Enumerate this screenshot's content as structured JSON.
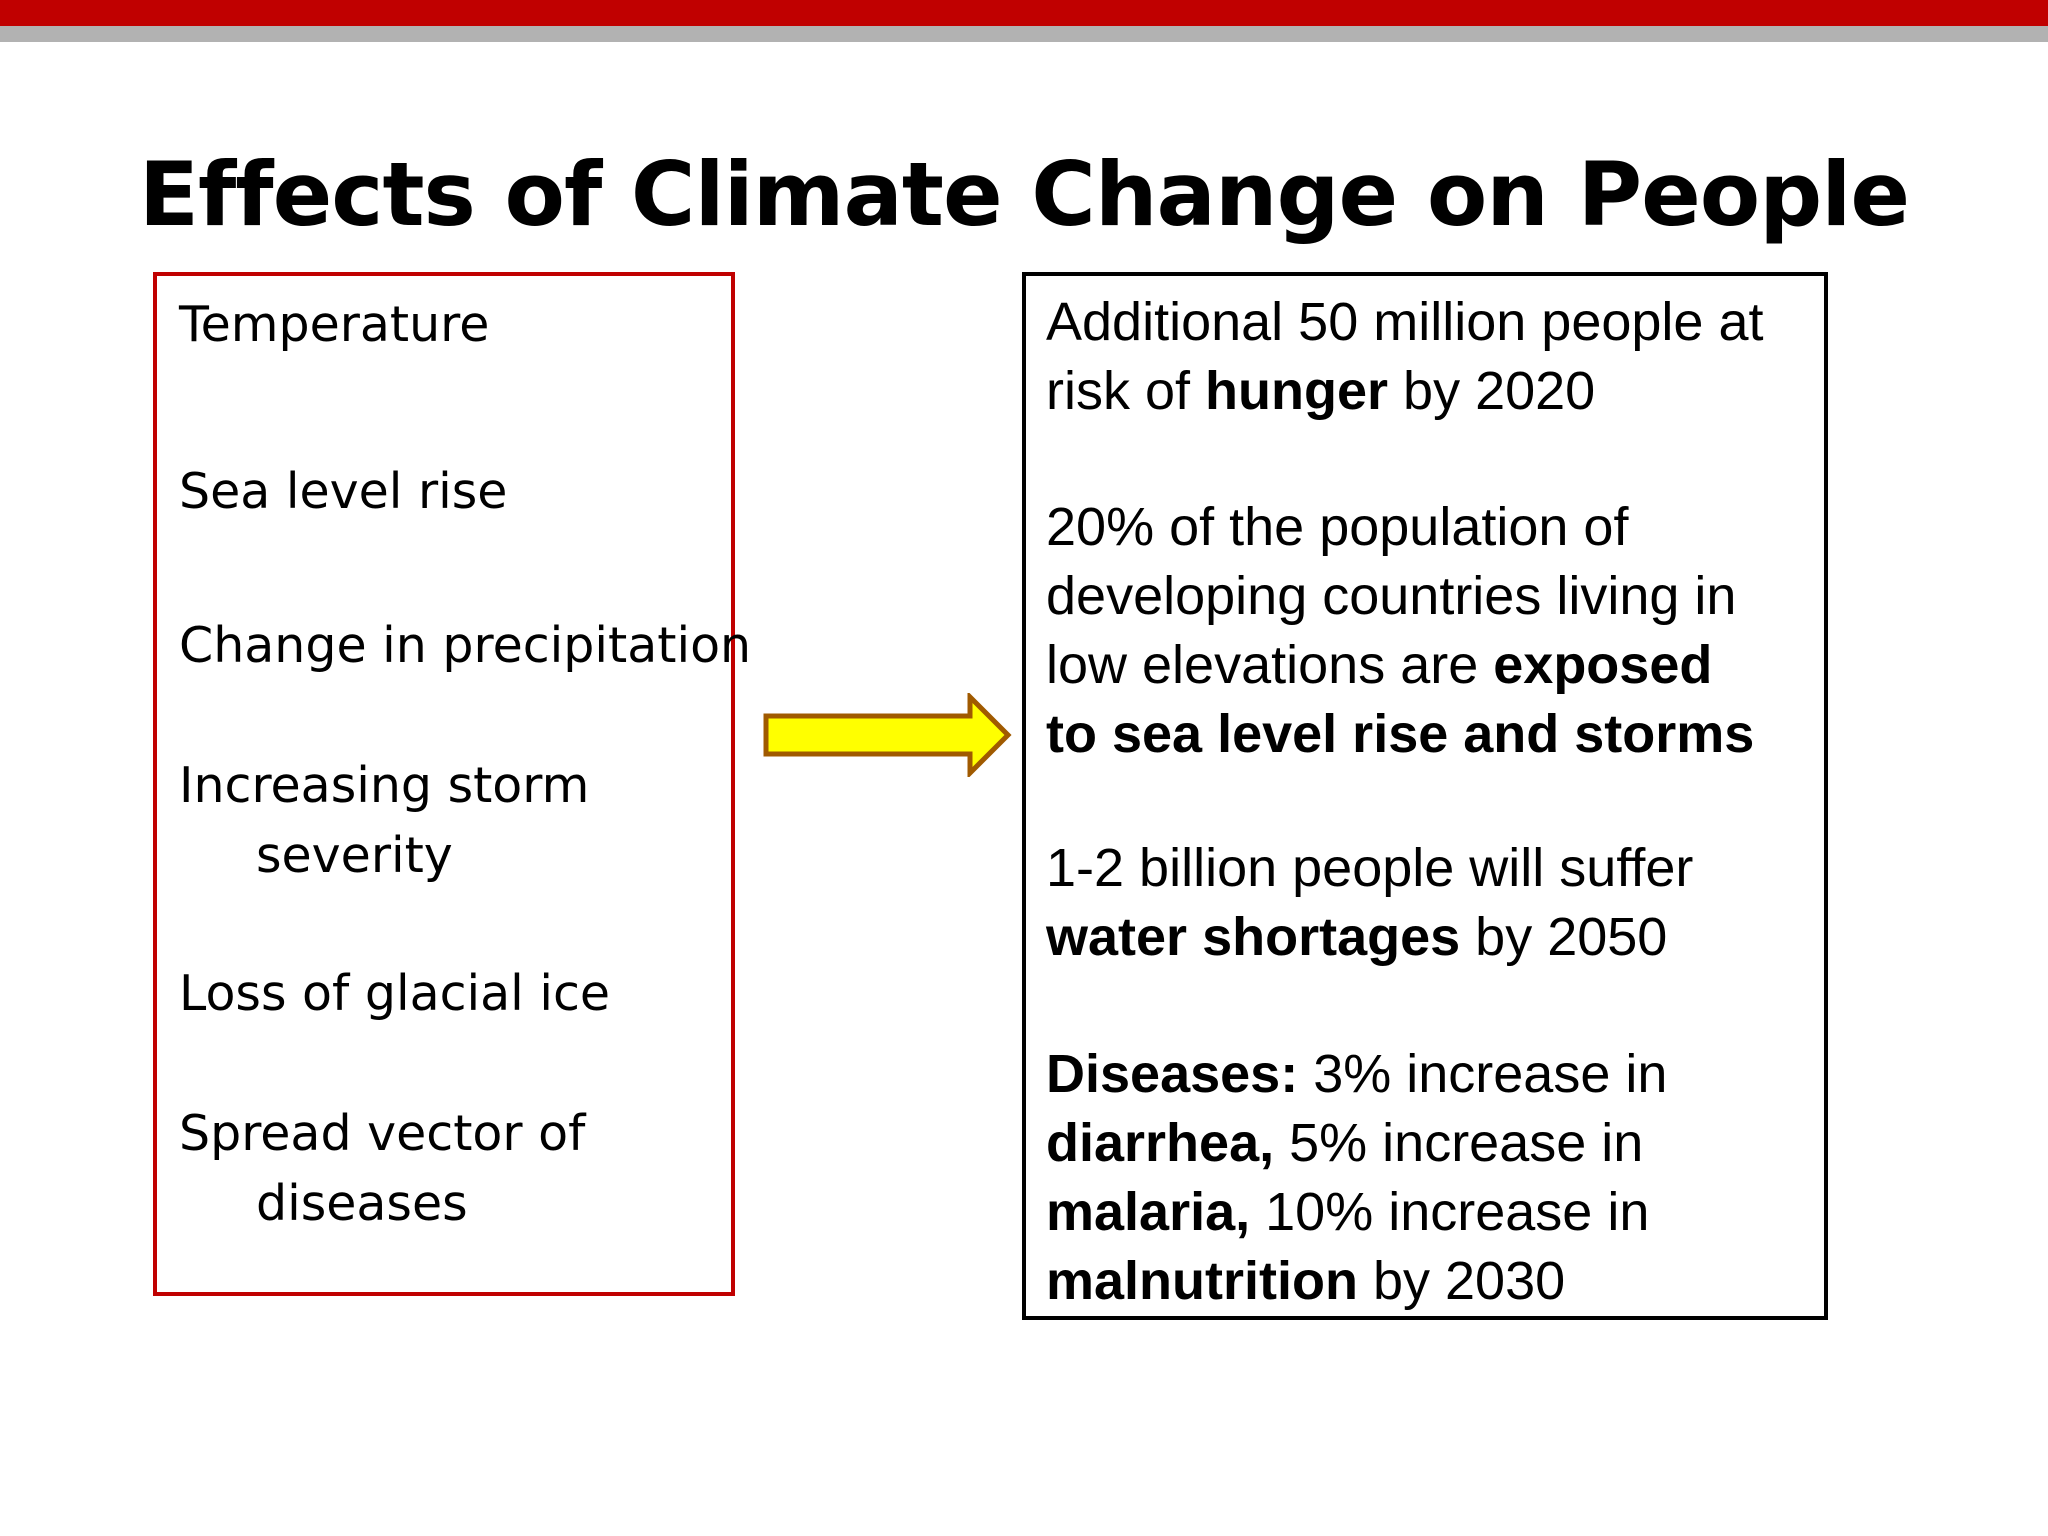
{
  "slide": {
    "title": "Effects of Climate Change on People",
    "colors": {
      "top_bar": "#c00000",
      "sub_bar": "#b2b2b2",
      "left_border": "#c00000",
      "right_border": "#000000",
      "arrow_fill": "#ffff00",
      "arrow_stroke": "#a05a00"
    }
  },
  "causes": [
    {
      "label": "Temperature"
    },
    {
      "label": "Sea level rise"
    },
    {
      "label": "Change in precipitation"
    },
    {
      "label": "Increasing storm severity"
    },
    {
      "label": "Loss of glacial ice"
    },
    {
      "label": "Spread vector of diseases"
    }
  ],
  "arrow_icon": "right-arrow-icon",
  "effects": {
    "hunger": {
      "l1": "Additional 50 million people at",
      "l2_pre": "risk of ",
      "l2_bold": "hunger",
      "l2_post": " by 2020"
    },
    "sea": {
      "l1": "20% of the population of",
      "l2": "developing countries living in",
      "l3_pre": "low elevations are ",
      "l3_bold": "exposed",
      "l4_bold": "to sea level rise and storms"
    },
    "water": {
      "l1": "1-2 billion people will suffer",
      "l2_bold": "water shortages",
      "l2_post": " by 2050"
    },
    "disease": {
      "l1_bold": "Diseases:",
      "l1_post": " 3% increase in",
      "l2_bold": "diarrhea,",
      "l2_post": " 5% increase in",
      "l3_bold": "malaria,",
      "l3_post": " 10% increase in",
      "l4_bold": "malnutrition",
      "l4_post": " by 2030"
    }
  }
}
